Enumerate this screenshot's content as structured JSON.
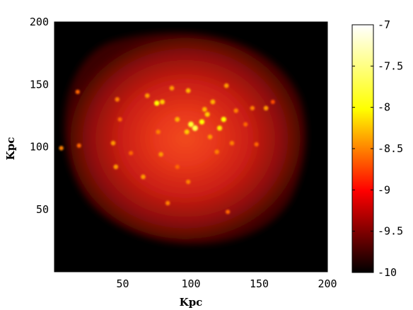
{
  "chart_data": {
    "type": "heatmap",
    "title": "",
    "xlabel": "Kpc",
    "ylabel": "Kpc",
    "xlim": [
      0,
      200
    ],
    "ylim": [
      0,
      200
    ],
    "xticks": [
      "50",
      "100",
      "150",
      "200"
    ],
    "yticks": [
      "50",
      "100",
      "150",
      "200"
    ],
    "colorbar": {
      "range": [
        -10,
        -7
      ],
      "ticks": [
        "-7",
        "-7.5",
        "-8",
        "-8.5",
        "-9",
        "-9.5",
        "-10"
      ],
      "colormap": "hot"
    },
    "diffuse_region": {
      "center": [
        100,
        115
      ],
      "peak_value": -8.9,
      "background_value": -10
    },
    "bright_sources": [
      {
        "x": 103,
        "y": 115,
        "value": -7.7
      },
      {
        "x": 100,
        "y": 118,
        "value": -7.8
      },
      {
        "x": 108,
        "y": 120,
        "value": -8.0
      },
      {
        "x": 97,
        "y": 112,
        "value": -8.2
      },
      {
        "x": 124,
        "y": 122,
        "value": -8.0
      },
      {
        "x": 121,
        "y": 115,
        "value": -8.1
      },
      {
        "x": 75,
        "y": 135,
        "value": -8.0
      },
      {
        "x": 79,
        "y": 136,
        "value": -8.2
      },
      {
        "x": 68,
        "y": 141,
        "value": -8.4
      },
      {
        "x": 86,
        "y": 147,
        "value": -8.4
      },
      {
        "x": 98,
        "y": 145,
        "value": -8.3
      },
      {
        "x": 116,
        "y": 136,
        "value": -8.3
      },
      {
        "x": 126,
        "y": 149,
        "value": -8.4
      },
      {
        "x": 17,
        "y": 144,
        "value": -8.6
      },
      {
        "x": 155,
        "y": 131,
        "value": -8.4
      },
      {
        "x": 160,
        "y": 136,
        "value": -8.7
      },
      {
        "x": 145,
        "y": 131,
        "value": -8.5
      },
      {
        "x": 133,
        "y": 129,
        "value": -8.5
      },
      {
        "x": 43,
        "y": 103,
        "value": -8.4
      },
      {
        "x": 18,
        "y": 101,
        "value": -8.6
      },
      {
        "x": 5,
        "y": 99,
        "value": -8.5
      },
      {
        "x": 78,
        "y": 94,
        "value": -8.4
      },
      {
        "x": 65,
        "y": 76,
        "value": -8.4
      },
      {
        "x": 83,
        "y": 55,
        "value": -8.5
      },
      {
        "x": 45,
        "y": 84,
        "value": -8.4
      },
      {
        "x": 98,
        "y": 72,
        "value": -8.5
      },
      {
        "x": 119,
        "y": 96,
        "value": -8.5
      },
      {
        "x": 127,
        "y": 48,
        "value": -8.6
      },
      {
        "x": 148,
        "y": 102,
        "value": -8.6
      },
      {
        "x": 130,
        "y": 103,
        "value": -8.5
      },
      {
        "x": 90,
        "y": 84,
        "value": -8.6
      },
      {
        "x": 114,
        "y": 108,
        "value": -8.4
      },
      {
        "x": 112,
        "y": 126,
        "value": -8.2
      },
      {
        "x": 46,
        "y": 138,
        "value": -8.5
      },
      {
        "x": 56,
        "y": 95,
        "value": -8.6
      },
      {
        "x": 76,
        "y": 112,
        "value": -8.5
      },
      {
        "x": 90,
        "y": 122,
        "value": -8.3
      },
      {
        "x": 110,
        "y": 130,
        "value": -8.3
      },
      {
        "x": 140,
        "y": 118,
        "value": -8.6
      },
      {
        "x": 48,
        "y": 122,
        "value": -8.6
      }
    ]
  }
}
